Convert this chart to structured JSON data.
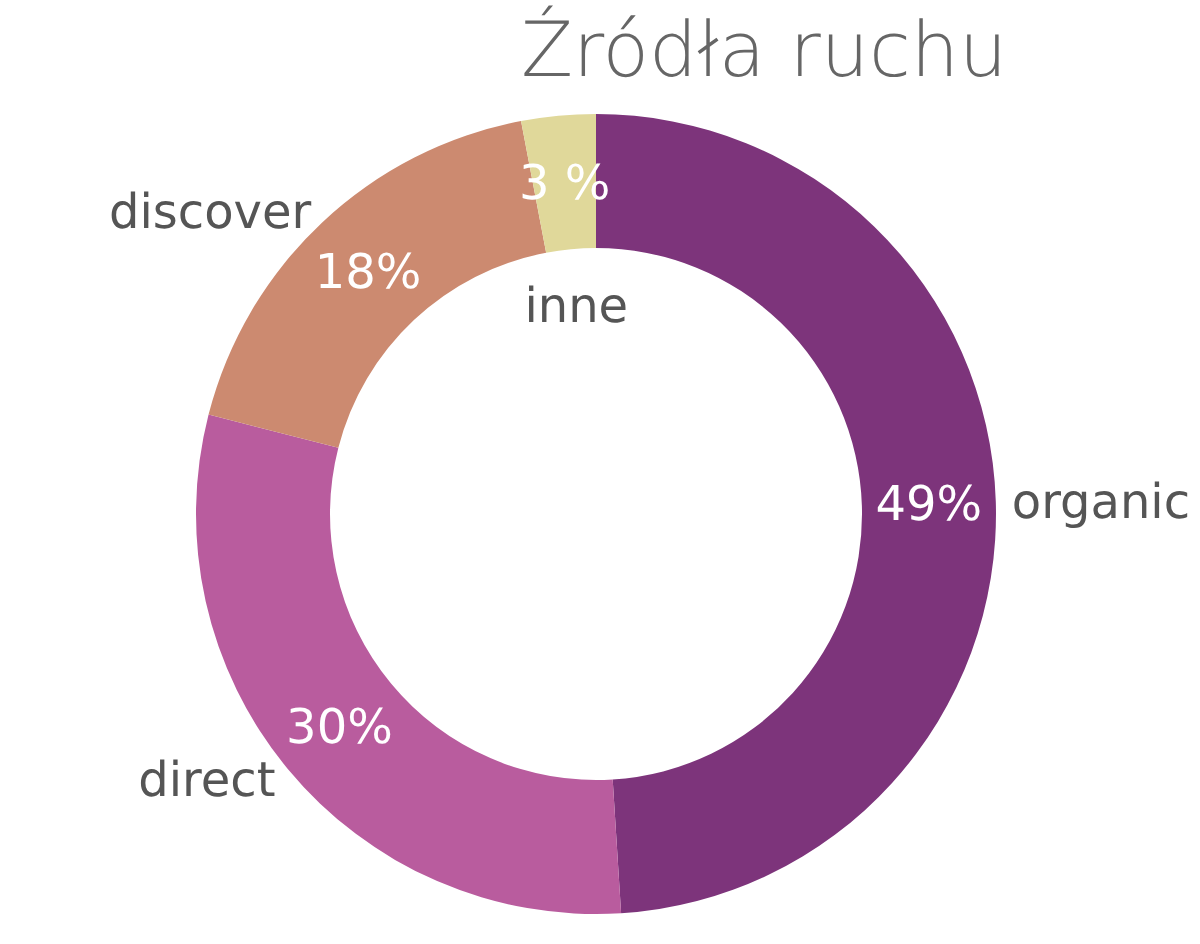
{
  "chart_data": {
    "type": "donut",
    "title": "Źródła ruchu",
    "categories": [
      "organic",
      "direct",
      "discover",
      "inne"
    ],
    "values": [
      49,
      30,
      18,
      3
    ],
    "value_labels": [
      "49%",
      "30%",
      "18%",
      "3 %"
    ],
    "colors": [
      "#7d347b",
      "#b95c9e",
      "#cc8a70",
      "#e0d89a"
    ]
  }
}
